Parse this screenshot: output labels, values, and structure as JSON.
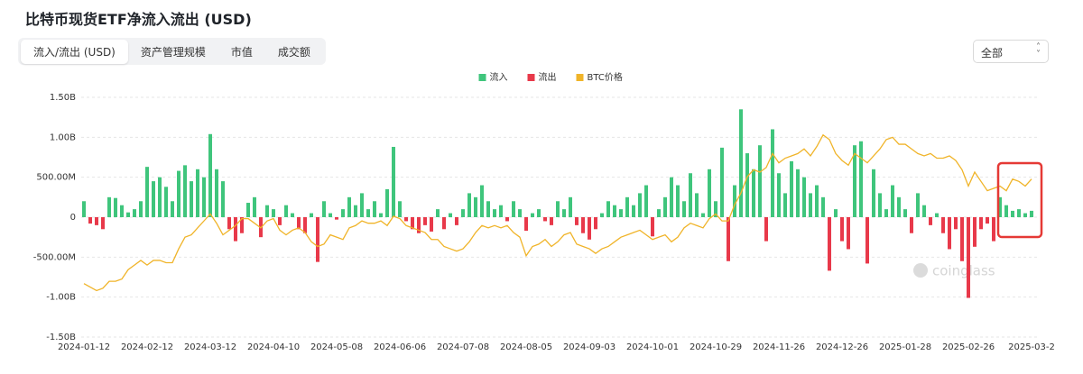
{
  "header": {
    "title": "比特币现货ETF净流入流出 (USD)"
  },
  "tabs": [
    "流入/流出 (USD)",
    "资产管理规模",
    "市值",
    "成交额"
  ],
  "select": "全部",
  "watermark": "coinglass",
  "chart_data": {
    "type": "bar",
    "categories": [
      "2024-01-12",
      null,
      null,
      null,
      null,
      null,
      null,
      null,
      null,
      null,
      "2024-02-12",
      null,
      null,
      null,
      null,
      null,
      null,
      null,
      null,
      null,
      "2024-03-12",
      null,
      null,
      null,
      null,
      null,
      null,
      null,
      null,
      null,
      "2024-04-10",
      null,
      null,
      null,
      null,
      null,
      null,
      null,
      null,
      null,
      "2024-05-08",
      null,
      null,
      null,
      null,
      null,
      null,
      null,
      null,
      null,
      "2024-06-06",
      null,
      null,
      null,
      null,
      null,
      null,
      null,
      null,
      null,
      "2024-07-08",
      null,
      null,
      null,
      null,
      null,
      null,
      null,
      null,
      null,
      "2024-08-05",
      null,
      null,
      null,
      null,
      null,
      null,
      null,
      null,
      null,
      "2024-09-03",
      null,
      null,
      null,
      null,
      null,
      null,
      null,
      null,
      null,
      "2024-10-01",
      null,
      null,
      null,
      null,
      null,
      null,
      null,
      null,
      null,
      "2024-10-29",
      null,
      null,
      null,
      null,
      null,
      null,
      null,
      null,
      null,
      "2024-11-26",
      null,
      null,
      null,
      null,
      null,
      null,
      null,
      null,
      null,
      "2024-12-26",
      null,
      null,
      null,
      null,
      null,
      null,
      null,
      null,
      null,
      "2025-01-28",
      null,
      null,
      null,
      null,
      null,
      null,
      null,
      null,
      null,
      "2025-02-26",
      null,
      null,
      null,
      null,
      null,
      null,
      null,
      null,
      null,
      "2025-03-2"
    ],
    "series": [
      {
        "name": "流入",
        "color": "#3fc57c",
        "values": [
          0.2,
          null,
          null,
          null,
          0.25,
          0.24,
          0.15,
          0.06,
          0.1,
          0.2,
          0.63,
          0.45,
          0.5,
          0.38,
          0.2,
          0.58,
          0.65,
          0.45,
          0.6,
          0.5,
          1.04,
          0.6,
          0.45,
          null,
          null,
          null,
          0.18,
          0.25,
          null,
          0.15,
          0.1,
          null,
          0.15,
          0.05,
          null,
          null,
          0.05,
          null,
          0.2,
          0.05,
          null,
          0.1,
          0.25,
          0.15,
          0.3,
          0.1,
          0.2,
          0.05,
          0.35,
          0.88,
          0.2,
          null,
          null,
          null,
          null,
          null,
          0.1,
          null,
          0.05,
          null,
          0.1,
          0.3,
          0.25,
          0.4,
          0.2,
          0.1,
          0.15,
          null,
          0.2,
          0.1,
          null,
          0.05,
          0.1,
          null,
          null,
          0.2,
          0.1,
          0.25,
          null,
          null,
          null,
          null,
          0.05,
          0.2,
          0.15,
          0.1,
          0.25,
          0.15,
          0.3,
          0.4,
          null,
          0.1,
          0.25,
          0.5,
          0.4,
          0.2,
          0.55,
          0.3,
          0.05,
          0.6,
          0.2,
          0.87,
          null,
          0.4,
          1.35,
          0.8,
          0.6,
          0.9,
          null,
          1.1,
          0.55,
          0.3,
          0.7,
          0.6,
          0.5,
          0.3,
          0.4,
          0.25,
          null,
          0.1,
          null,
          null,
          0.9,
          0.95,
          null,
          0.6,
          0.3,
          0.1,
          0.4,
          0.25,
          0.1,
          null,
          0.3,
          0.15,
          null,
          0.05,
          null,
          null,
          null,
          null,
          null,
          null,
          null,
          null,
          null,
          0.25,
          0.15,
          0.08,
          0.1,
          0.05,
          0.08
        ]
      },
      {
        "name": "流出",
        "color": "#e8394a",
        "values": [
          null,
          -0.08,
          -0.1,
          -0.15,
          null,
          null,
          null,
          null,
          null,
          null,
          null,
          null,
          null,
          null,
          null,
          null,
          null,
          null,
          null,
          null,
          null,
          null,
          null,
          -0.15,
          -0.3,
          -0.2,
          null,
          null,
          -0.25,
          null,
          null,
          -0.1,
          null,
          null,
          -0.15,
          -0.2,
          null,
          -0.56,
          null,
          null,
          -0.03,
          null,
          null,
          null,
          null,
          null,
          null,
          null,
          null,
          null,
          null,
          -0.05,
          -0.15,
          -0.2,
          -0.1,
          -0.18,
          null,
          -0.15,
          null,
          -0.1,
          null,
          null,
          null,
          null,
          null,
          null,
          null,
          -0.05,
          null,
          null,
          -0.17,
          null,
          null,
          -0.05,
          -0.1,
          null,
          null,
          null,
          -0.1,
          -0.2,
          -0.28,
          -0.15,
          null,
          null,
          null,
          null,
          null,
          null,
          null,
          null,
          -0.24,
          null,
          null,
          null,
          null,
          null,
          null,
          null,
          null,
          null,
          null,
          null,
          -0.55,
          null,
          null,
          null,
          null,
          null,
          -0.3,
          null,
          null,
          null,
          null,
          null,
          null,
          null,
          null,
          null,
          -0.67,
          null,
          -0.3,
          -0.4,
          null,
          null,
          -0.58,
          null,
          null,
          null,
          null,
          null,
          null,
          -0.2,
          null,
          null,
          -0.1,
          null,
          -0.2,
          -0.4,
          -0.15,
          -0.55,
          -1.01,
          -0.37,
          -0.15,
          -0.08,
          -0.3,
          null,
          null,
          null,
          null,
          null,
          null
        ]
      },
      {
        "name": "BTC价格",
        "color": "#f0b429",
        "axis": "y2",
        "values": [
          42000,
          40500,
          39000,
          40000,
          43000,
          43000,
          44000,
          48000,
          50000,
          52000,
          50000,
          52000,
          52000,
          51000,
          51000,
          57000,
          62000,
          63000,
          66000,
          69000,
          72000,
          68000,
          63000,
          65000,
          67000,
          70000,
          70000,
          68000,
          66000,
          69000,
          70000,
          65000,
          63000,
          65000,
          66000,
          64000,
          60000,
          58000,
          59000,
          63000,
          62000,
          61000,
          66000,
          67000,
          69000,
          68000,
          68000,
          69000,
          67000,
          71000,
          70000,
          67000,
          66000,
          65000,
          64000,
          61000,
          61000,
          58000,
          57000,
          56000,
          57000,
          60000,
          64000,
          67000,
          66000,
          67000,
          66000,
          67000,
          64000,
          62000,
          54000,
          58000,
          59000,
          61000,
          58000,
          60000,
          63000,
          64000,
          59000,
          58000,
          57000,
          55000,
          57000,
          58000,
          60000,
          62000,
          63000,
          64000,
          65000,
          63000,
          61000,
          62000,
          63000,
          60000,
          62000,
          66000,
          68000,
          67000,
          66000,
          70000,
          72000,
          69000,
          69000,
          76000,
          81000,
          88000,
          91000,
          90000,
          92000,
          98000,
          94000,
          96000,
          97000,
          98000,
          100000,
          97000,
          101000,
          106000,
          104000,
          98000,
          95000,
          93000,
          98000,
          96000,
          94000,
          97000,
          100000,
          104000,
          105000,
          102000,
          102000,
          100000,
          98000,
          97000,
          98000,
          96000,
          96000,
          97000,
          95000,
          91000,
          84000,
          90000,
          86000,
          82000,
          83000,
          84000,
          82000,
          87000,
          86000,
          84000,
          87000
        ]
      }
    ],
    "ylim": [
      -1.5,
      1.5
    ],
    "yticks": [
      {
        "value": 1.5,
        "label": "1.50B"
      },
      {
        "value": 1,
        "label": "1.00B"
      },
      {
        "value": 0.5,
        "label": "500.00M"
      },
      0,
      {
        "value": -0.5,
        "label": "-500.00M"
      },
      {
        "value": -1,
        "label": "-1.00B"
      },
      {
        "value": -1.5,
        "label": "-1.50B"
      }
    ],
    "y2lim": [
      19000,
      122200
    ],
    "grid": true,
    "legend": "top"
  }
}
